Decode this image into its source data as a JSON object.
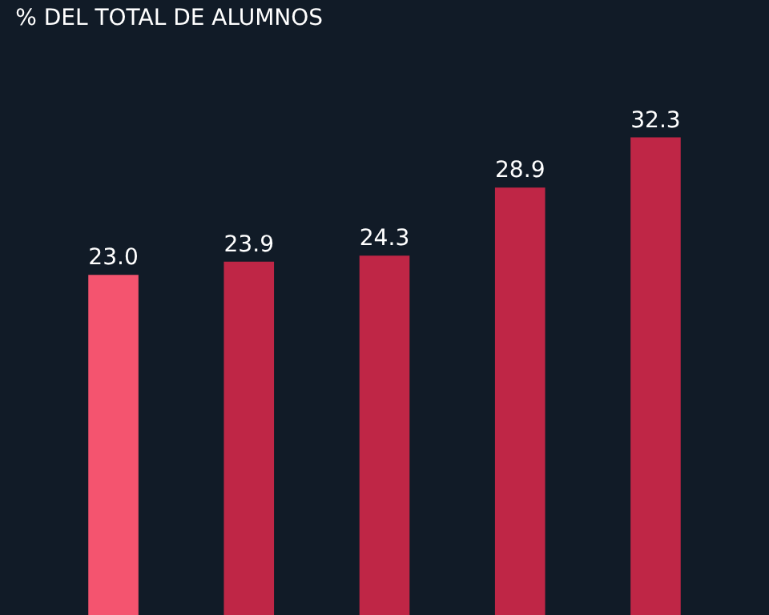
{
  "chart_data": {
    "type": "bar",
    "subtitle": "% DEL TOTAL DE ALUMNOS",
    "categories": [
      null,
      null,
      null,
      null,
      null
    ],
    "values": [
      23.0,
      23.9,
      24.3,
      28.9,
      32.3
    ],
    "colors": [
      "#f4546f",
      "#bf2646",
      "#bf2646",
      "#bf2646",
      "#bf2646"
    ],
    "value_labels": [
      "23.0",
      "23.9",
      "24.3",
      "28.9",
      "32.3"
    ],
    "grid": false,
    "legend": false
  }
}
